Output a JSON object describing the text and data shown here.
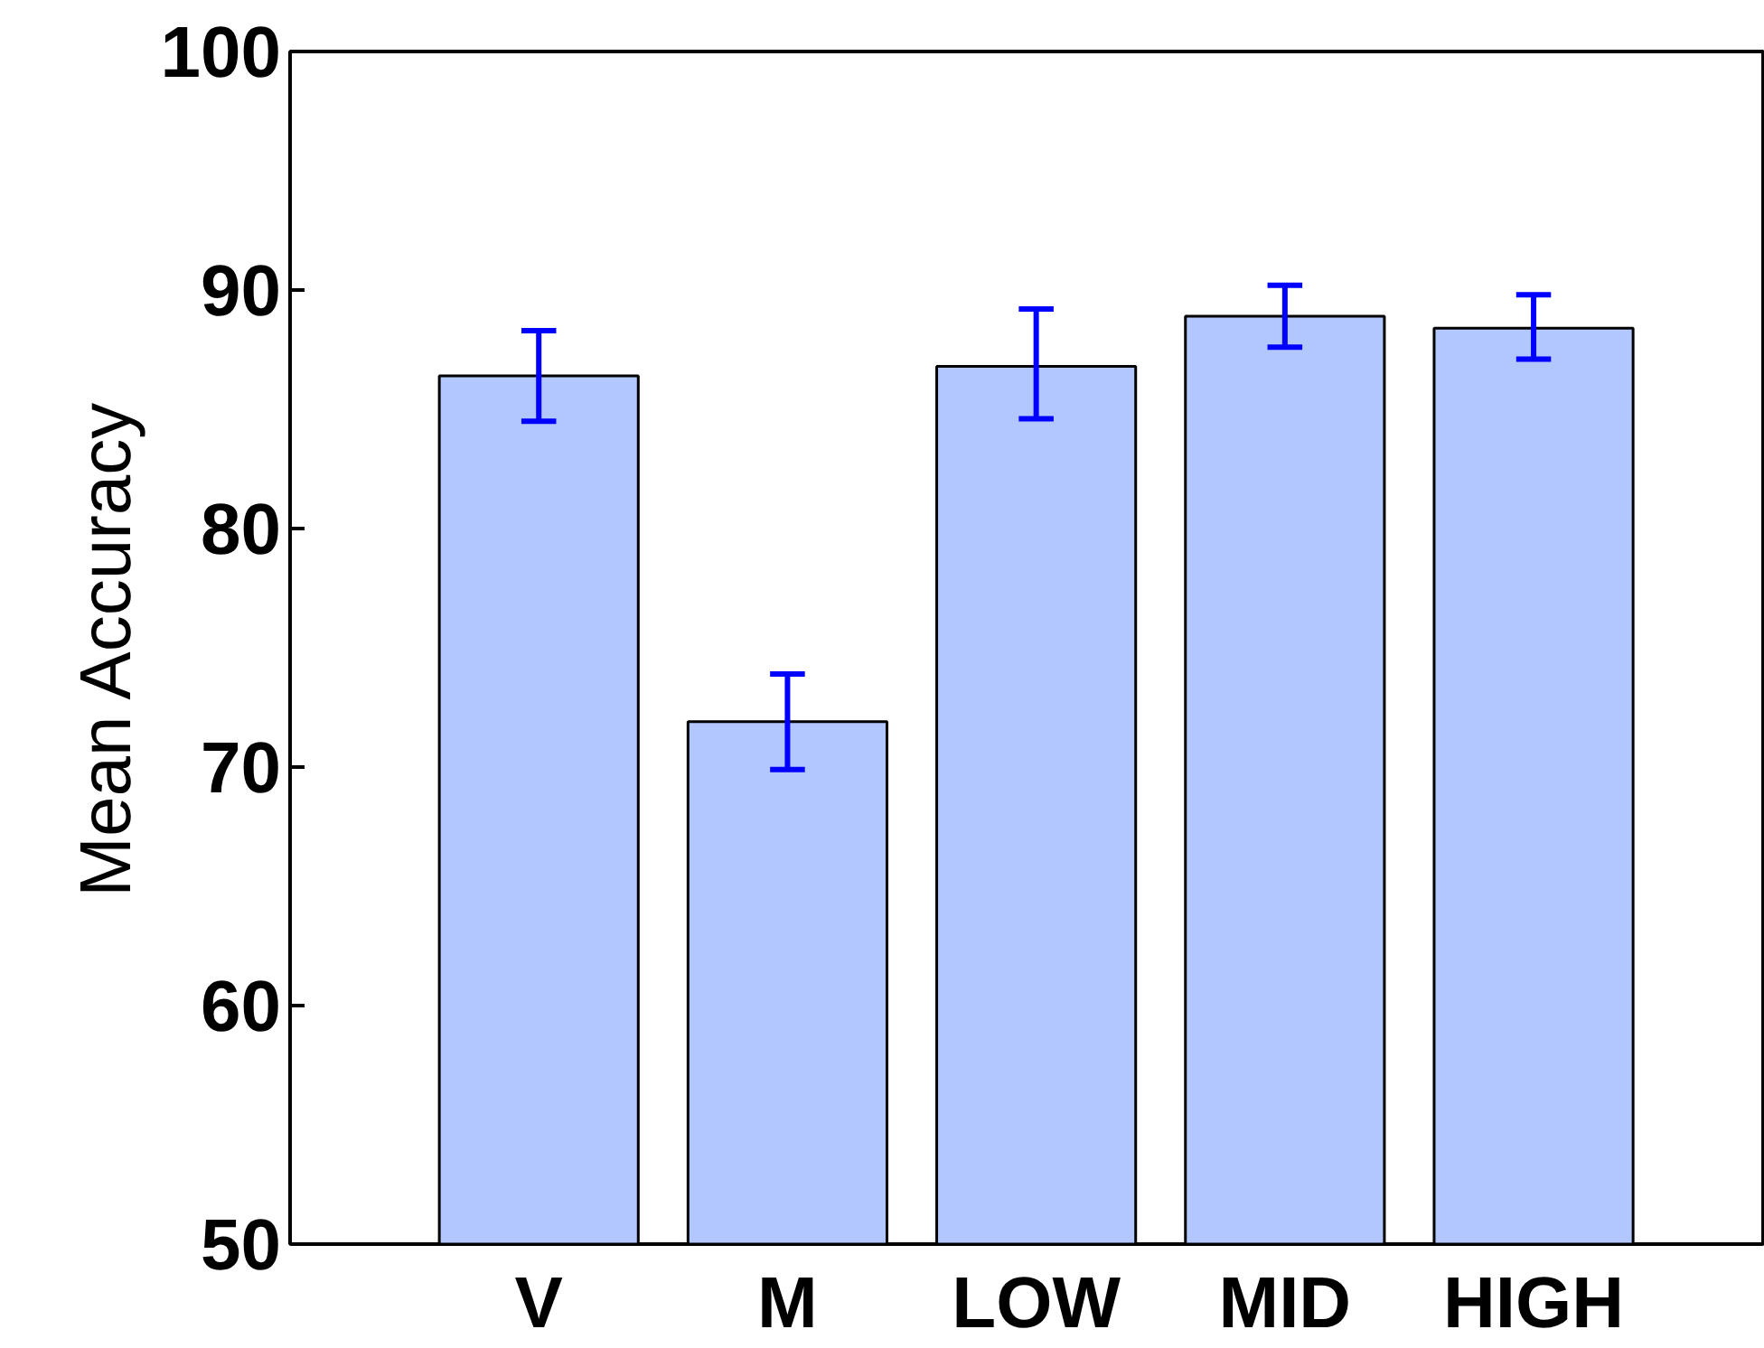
{
  "chart_data": {
    "type": "bar",
    "ylabel": "Mean Accuracy",
    "categories": [
      "V",
      "M",
      "LOW",
      "MID",
      "HIGH"
    ],
    "values": [
      86.4,
      71.9,
      86.8,
      88.9,
      88.4
    ],
    "errors": [
      [
        84.5,
        88.3
      ],
      [
        69.9,
        73.9
      ],
      [
        84.6,
        89.2
      ],
      [
        87.6,
        90.2
      ],
      [
        87.1,
        89.8
      ]
    ],
    "color": "#b3c7ff",
    "ylim": [
      50,
      100
    ],
    "yticks": [
      50,
      60,
      70,
      80,
      90,
      100
    ],
    "grid": false
  }
}
